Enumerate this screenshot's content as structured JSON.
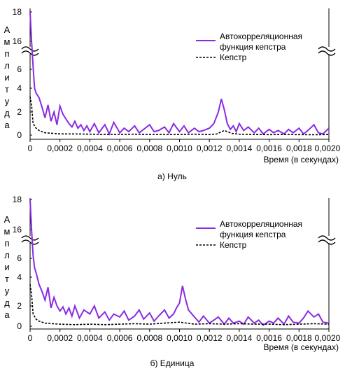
{
  "chart_data": [
    {
      "type": "line",
      "caption": "а) Нуль",
      "ylabel": "Амплитуда",
      "xlabel": "Время (в секундах)",
      "xlim": [
        0,
        0.002
      ],
      "x_ticks": [
        "0",
        "0,0002",
        "0,0004",
        "0,0006",
        "0,0008",
        "0,0010",
        "0,0012",
        "0,0014",
        "0,0016",
        "0,0018",
        "0,0020"
      ],
      "y_ticks": [
        "0",
        "2",
        "4",
        "6",
        "16",
        "18"
      ],
      "axis_break": true,
      "legend_position": "top-right",
      "series": [
        {
          "name": "Автокорреляционная функция кепстра",
          "color": "#8a2be2",
          "style": "solid",
          "x": [
            0,
            1e-05,
            2e-05,
            3e-05,
            4e-05,
            6e-05,
            8e-05,
            0.0001,
            0.00012,
            0.00014,
            0.00016,
            0.00018,
            0.0002,
            0.00022,
            0.00024,
            0.00026,
            0.00028,
            0.0003,
            0.00032,
            0.00034,
            0.00036,
            0.00038,
            0.0004,
            0.00043,
            0.00046,
            0.0005,
            0.00053,
            0.00056,
            0.0006,
            0.00063,
            0.00066,
            0.0007,
            0.00073,
            0.00076,
            0.0008,
            0.00083,
            0.00086,
            0.0009,
            0.00093,
            0.00096,
            0.001,
            0.00103,
            0.00106,
            0.0011,
            0.00113,
            0.00116,
            0.0012,
            0.00123,
            0.00126,
            0.00128,
            0.0013,
            0.00132,
            0.00134,
            0.00136,
            0.00138,
            0.0014,
            0.00143,
            0.00146,
            0.0015,
            0.00153,
            0.00156,
            0.0016,
            0.00163,
            0.00166,
            0.0017,
            0.00173,
            0.00176,
            0.0018,
            0.00183,
            0.00186,
            0.0019,
            0.00193,
            0.00196,
            0.002
          ],
          "y": [
            18,
            16,
            7,
            4,
            3.6,
            3.2,
            2.4,
            1.5,
            2.6,
            1.2,
            2.0,
            0.9,
            2.5,
            1.8,
            1.4,
            1.0,
            0.7,
            1.2,
            0.6,
            0.9,
            0.4,
            0.8,
            0.3,
            1.0,
            0.2,
            0.9,
            0.1,
            1.1,
            0.2,
            0.6,
            0.3,
            0.8,
            0.2,
            0.5,
            0.9,
            0.3,
            0.4,
            0.7,
            0.2,
            1.0,
            0.3,
            0.8,
            0.2,
            0.6,
            0.3,
            0.4,
            0.6,
            1.0,
            2.0,
            3.1,
            2.2,
            1.0,
            0.5,
            0.8,
            0.3,
            1.0,
            0.4,
            0.7,
            0.2,
            0.6,
            0.1,
            0.5,
            0.2,
            0.4,
            0.1,
            0.5,
            0.2,
            0.6,
            0.1,
            0.4,
            0.9,
            0.2,
            0.1,
            0.6
          ]
        },
        {
          "name": "Кепстр",
          "color": "#000000",
          "style": "dashed",
          "x": [
            0,
            1e-05,
            2e-05,
            4e-05,
            6e-05,
            8e-05,
            0.0001,
            0.00015,
            0.0002,
            0.0003,
            0.0004,
            0.0005,
            0.0006,
            0.0007,
            0.0008,
            0.0009,
            0.001,
            0.0011,
            0.0012,
            0.00125,
            0.0013,
            0.00135,
            0.0014,
            0.0015,
            0.0016,
            0.0017,
            0.0018,
            0.0019,
            0.002
          ],
          "y": [
            3.3,
            2.6,
            1.0,
            0.6,
            0.4,
            0.3,
            0.2,
            0.15,
            0.1,
            0.1,
            0.08,
            0.05,
            0.06,
            0.08,
            0.05,
            0.06,
            0.05,
            0.08,
            0.05,
            0.1,
            0.4,
            0.15,
            0.08,
            0.05,
            0.04,
            0.05,
            0.04,
            0.03,
            0.05
          ]
        }
      ]
    },
    {
      "type": "line",
      "caption": "б) Единица",
      "ylabel": "Амплитуда",
      "xlabel": "Время (в секундах)",
      "xlim": [
        0,
        0.002
      ],
      "x_ticks": [
        "0",
        "0,0002",
        "0,0004",
        "0,0006",
        "0,0008",
        "0,0010",
        "0,0012",
        "0,0014",
        "0,0016",
        "0,0018",
        "0,0020"
      ],
      "y_ticks": [
        "0",
        "2",
        "4",
        "6",
        "16",
        "18"
      ],
      "axis_break": true,
      "legend_position": "top-right",
      "series": [
        {
          "name": "Автокорреляционная функция кепстра",
          "color": "#8a2be2",
          "style": "solid",
          "x": [
            0,
            1e-05,
            2e-05,
            3e-05,
            4e-05,
            6e-05,
            8e-05,
            0.0001,
            0.00012,
            0.00014,
            0.00016,
            0.00018,
            0.0002,
            0.00022,
            0.00024,
            0.00026,
            0.00028,
            0.0003,
            0.00033,
            0.00036,
            0.0004,
            0.00043,
            0.00046,
            0.0005,
            0.00053,
            0.00056,
            0.0006,
            0.00063,
            0.00066,
            0.0007,
            0.00073,
            0.00076,
            0.0008,
            0.00083,
            0.00086,
            0.0009,
            0.00093,
            0.00096,
            0.00098,
            0.001,
            0.00102,
            0.00104,
            0.00106,
            0.0011,
            0.00113,
            0.00116,
            0.0012,
            0.00123,
            0.00126,
            0.0013,
            0.00133,
            0.00136,
            0.0014,
            0.00143,
            0.00146,
            0.0015,
            0.00153,
            0.00156,
            0.0016,
            0.00163,
            0.00166,
            0.0017,
            0.00173,
            0.00176,
            0.0018,
            0.00183,
            0.00186,
            0.0019,
            0.00193,
            0.00196,
            0.002
          ],
          "y": [
            18,
            16,
            7,
            5,
            4.5,
            3.5,
            3.0,
            2.4,
            3.3,
            1.8,
            2.6,
            2.0,
            1.5,
            1.9,
            1.2,
            1.8,
            1.0,
            2.0,
            0.8,
            1.6,
            1.2,
            2.0,
            0.8,
            1.4,
            0.6,
            1.2,
            0.9,
            1.5,
            0.6,
            1.0,
            1.6,
            0.7,
            1.3,
            0.5,
            1.0,
            1.6,
            0.8,
            1.2,
            1.8,
            2.2,
            3.4,
            2.5,
            1.6,
            0.9,
            0.4,
            1.0,
            0.3,
            0.6,
            0.9,
            0.2,
            0.8,
            0.3,
            0.5,
            0.2,
            0.9,
            0.3,
            0.6,
            0.1,
            0.5,
            0.3,
            0.8,
            0.2,
            1.0,
            0.4,
            0.3,
            0.8,
            1.5,
            0.9,
            1.2,
            0.4,
            0.3
          ]
        },
        {
          "name": "Кепстр",
          "color": "#000000",
          "style": "dashed",
          "x": [
            0,
            1e-05,
            2e-05,
            4e-05,
            6e-05,
            8e-05,
            0.0001,
            0.00015,
            0.0002,
            0.0003,
            0.0004,
            0.0005,
            0.0006,
            0.0007,
            0.0008,
            0.0009,
            0.001,
            0.0011,
            0.0012,
            0.0013,
            0.0014,
            0.0015,
            0.0016,
            0.0017,
            0.0018,
            0.0019,
            0.002
          ],
          "y": [
            3.5,
            2.8,
            1.2,
            0.7,
            0.5,
            0.4,
            0.3,
            0.25,
            0.2,
            0.15,
            0.2,
            0.15,
            0.2,
            0.25,
            0.2,
            0.3,
            0.4,
            0.2,
            0.25,
            0.2,
            0.25,
            0.2,
            0.2,
            0.15,
            0.2,
            0.25,
            0.2
          ]
        }
      ]
    }
  ]
}
